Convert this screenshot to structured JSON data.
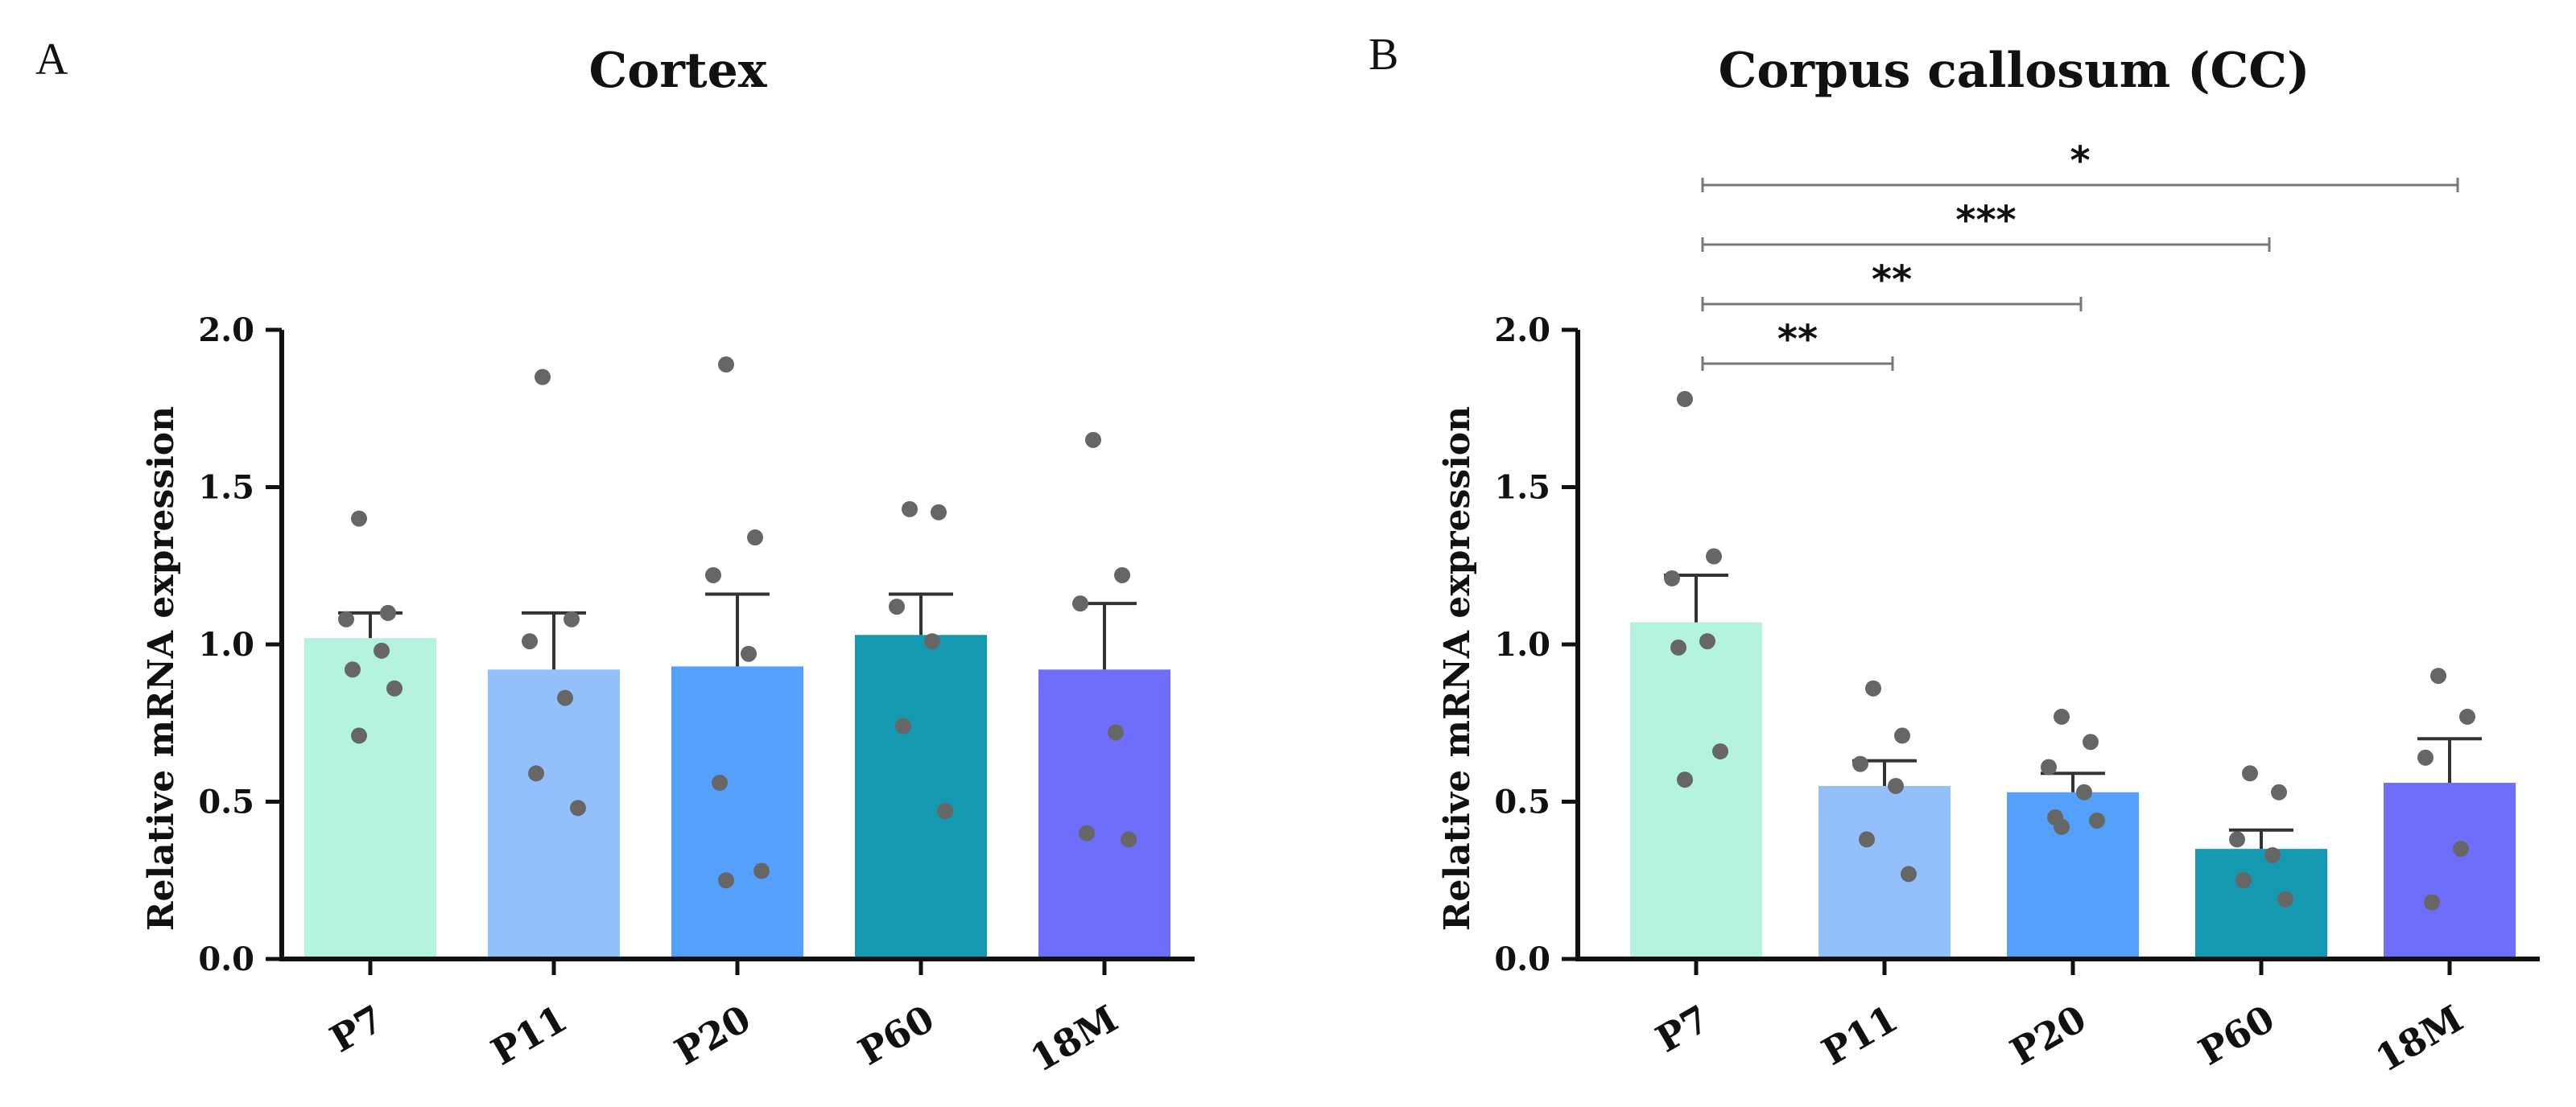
{
  "colors": {
    "P7": "#b4f3dd",
    "P11": "#93c0fa",
    "P20": "#54a0fa",
    "P60": "#1599b1",
    "18M": "#6e6efa",
    "dots": "#666666",
    "axis": "#111111",
    "sig_line": "#777777"
  },
  "chart_data": [
    {
      "panel": "A",
      "type": "bar",
      "title": "Cortex",
      "ylabel": "Relative mRNA expression",
      "xlabel": "",
      "ylim": [
        0,
        2.0
      ],
      "yticks": [
        "0.0",
        "0.5",
        "1.0",
        "1.5",
        "2.0"
      ],
      "categories": [
        "P7",
        "P11",
        "P20",
        "P60",
        "18M"
      ],
      "values": [
        1.02,
        0.92,
        0.93,
        1.03,
        0.92
      ],
      "errors": [
        0.08,
        0.18,
        0.23,
        0.13,
        0.21
      ],
      "points": [
        [
          1.4,
          1.1,
          1.08,
          0.98,
          0.92,
          0.86,
          0.71
        ],
        [
          1.85,
          1.08,
          1.01,
          0.83,
          0.59,
          0.48
        ],
        [
          1.89,
          1.34,
          1.22,
          0.97,
          0.56,
          0.28,
          0.25
        ],
        [
          1.43,
          1.42,
          1.12,
          1.01,
          0.74,
          0.47
        ],
        [
          1.65,
          1.22,
          1.13,
          0.72,
          0.4,
          0.38
        ]
      ],
      "significance": []
    },
    {
      "panel": "B",
      "type": "bar",
      "title": "Corpus callosum (CC)",
      "ylabel": "Relative mRNA expression",
      "xlabel": "",
      "ylim": [
        0,
        2.0
      ],
      "yticks": [
        "0.0",
        "0.5",
        "1.0",
        "1.5",
        "2.0"
      ],
      "categories": [
        "P7",
        "P11",
        "P20",
        "P60",
        "18M"
      ],
      "values": [
        1.07,
        0.55,
        0.53,
        0.35,
        0.56
      ],
      "errors": [
        0.15,
        0.08,
        0.06,
        0.06,
        0.14
      ],
      "points": [
        [
          1.78,
          1.28,
          1.21,
          1.01,
          0.99,
          0.66,
          0.57
        ],
        [
          0.86,
          0.71,
          0.62,
          0.55,
          0.38,
          0.27
        ],
        [
          0.77,
          0.69,
          0.61,
          0.53,
          0.45,
          0.44,
          0.42
        ],
        [
          0.59,
          0.53,
          0.38,
          0.33,
          0.25,
          0.19
        ],
        [
          0.9,
          0.77,
          0.64,
          0.35,
          0.18
        ]
      ],
      "significance": [
        {
          "from": "P7",
          "to": "P11",
          "label": "**"
        },
        {
          "from": "P7",
          "to": "P20",
          "label": "**"
        },
        {
          "from": "P7",
          "to": "P60",
          "label": "***"
        },
        {
          "from": "P7",
          "to": "18M",
          "label": "*"
        }
      ]
    }
  ]
}
